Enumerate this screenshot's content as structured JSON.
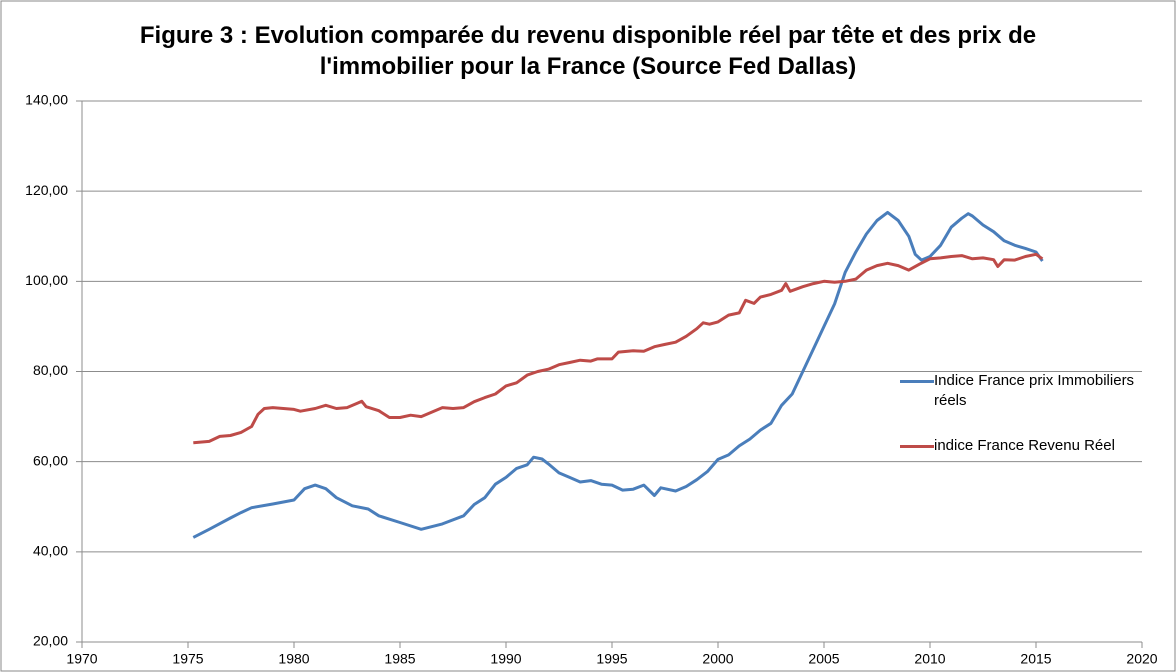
{
  "chart_data": {
    "type": "line",
    "title": "Figure 3 : Evolution comparée du revenu disponible réel par tête et des prix de l'immobilier pour la France (Source Fed Dallas)",
    "xlim": [
      1970,
      2020
    ],
    "xticks": [
      1970,
      1975,
      1980,
      1985,
      1990,
      1995,
      2000,
      2005,
      2010,
      2015,
      2020
    ],
    "ylim": [
      20,
      140
    ],
    "yticks": [
      {
        "value": 20,
        "label": "20,00"
      },
      {
        "value": 40,
        "label": "40,00"
      },
      {
        "value": 60,
        "label": "60,00"
      },
      {
        "value": 80,
        "label": "80,00"
      },
      {
        "value": 100,
        "label": "100,00"
      },
      {
        "value": 120,
        "label": "120,00"
      },
      {
        "value": 140,
        "label": "140,00"
      }
    ],
    "grid": true,
    "legend": "right",
    "series": [
      {
        "name": "Indice France prix Immobiliers réels",
        "color": "#4a7ebb",
        "x": [
          1975.25,
          1976,
          1977,
          1977.5,
          1978,
          1979,
          1980,
          1980.5,
          1981,
          1981.5,
          1982,
          1982.75,
          1983.5,
          1984,
          1985,
          1986,
          1987,
          1988,
          1988.5,
          1989,
          1989.5,
          1990,
          1990.5,
          1991,
          1991.3,
          1991.7,
          1992,
          1992.5,
          1993,
          1993.5,
          1994,
          1994.5,
          1995,
          1995.5,
          1996,
          1996.5,
          1997,
          1997.3,
          1998,
          1998.5,
          1999,
          1999.5,
          2000,
          2000.5,
          2001,
          2001.5,
          2002,
          2002.5,
          2003,
          2003.5,
          2004,
          2004.5,
          2005,
          2005.5,
          2006,
          2006.5,
          2007,
          2007.5,
          2008,
          2008.5,
          2009,
          2009.3,
          2009.6,
          2010,
          2010.5,
          2011,
          2011.5,
          2011.8,
          2012,
          2012.5,
          2013,
          2013.5,
          2014,
          2014.5,
          2015,
          2015.3
        ],
        "values": [
          43.2,
          45,
          47.5,
          48.7,
          49.8,
          50.6,
          51.5,
          54,
          54.8,
          54,
          52,
          50.2,
          49.5,
          48,
          46.5,
          45,
          46.2,
          48,
          50.5,
          52,
          55,
          56.5,
          58.5,
          59.3,
          61,
          60.6,
          59.5,
          57.5,
          56.5,
          55.5,
          55.8,
          55,
          54.8,
          53.7,
          53.9,
          54.8,
          52.5,
          54.2,
          53.5,
          54.5,
          56,
          57.8,
          60.5,
          61.5,
          63.5,
          65,
          67,
          68.5,
          72.5,
          75,
          80,
          85,
          90,
          95,
          102,
          106.5,
          110.5,
          113.5,
          115.3,
          113.5,
          110,
          106,
          104.7,
          105.5,
          108,
          112,
          114,
          115,
          114.5,
          112.5,
          111,
          109,
          108,
          107.3,
          106.5,
          104.5
        ]
      },
      {
        "name": "indice France Revenu Réel",
        "color": "#be4b48",
        "x": [
          1975.25,
          1976,
          1976.5,
          1977,
          1977.5,
          1978,
          1978.3,
          1978.6,
          1979,
          1979.5,
          1980,
          1980.3,
          1981,
          1981.5,
          1982,
          1982.5,
          1983,
          1983.2,
          1983.4,
          1984,
          1984.5,
          1985,
          1985.5,
          1986,
          1986.5,
          1987,
          1987.5,
          1988,
          1988.5,
          1989,
          1989.5,
          1990,
          1990.5,
          1991,
          1991.5,
          1992,
          1992.5,
          1993,
          1993.5,
          1994,
          1994.3,
          1995,
          1995.3,
          1996,
          1996.5,
          1997,
          1997.5,
          1998,
          1998.5,
          1999,
          1999.3,
          1999.6,
          2000,
          2000.5,
          2001,
          2001.3,
          2001.7,
          2002,
          2002.5,
          2003,
          2003.2,
          2003.4,
          2004,
          2004.5,
          2005,
          2005.5,
          2006,
          2006.5,
          2007,
          2007.5,
          2008,
          2008.5,
          2009,
          2009.5,
          2010,
          2010.5,
          2011,
          2011.5,
          2012,
          2012.5,
          2013,
          2013.2,
          2013.5,
          2014,
          2014.5,
          2015,
          2015.3
        ],
        "values": [
          64.2,
          64.5,
          65.6,
          65.8,
          66.5,
          67.8,
          70.5,
          71.8,
          72,
          71.8,
          71.6,
          71.2,
          71.8,
          72.5,
          71.8,
          72,
          73,
          73.4,
          72.2,
          71.3,
          69.8,
          69.8,
          70.3,
          70,
          71,
          72,
          71.8,
          72,
          73.3,
          74.2,
          75,
          76.8,
          77.5,
          79.2,
          80,
          80.5,
          81.5,
          82,
          82.5,
          82.3,
          82.8,
          82.8,
          84.3,
          84.6,
          84.5,
          85.5,
          86,
          86.5,
          87.8,
          89.5,
          90.8,
          90.5,
          91,
          92.5,
          93,
          95.8,
          95.1,
          96.5,
          97.1,
          98,
          99.5,
          97.8,
          98.8,
          99.5,
          100,
          99.8,
          100,
          100.5,
          102.5,
          103.5,
          104,
          103.5,
          102.5,
          103.8,
          105,
          105.2,
          105.5,
          105.7,
          105,
          105.2,
          104.8,
          103.3,
          104.8,
          104.7,
          105.5,
          106,
          105
        ]
      }
    ]
  }
}
